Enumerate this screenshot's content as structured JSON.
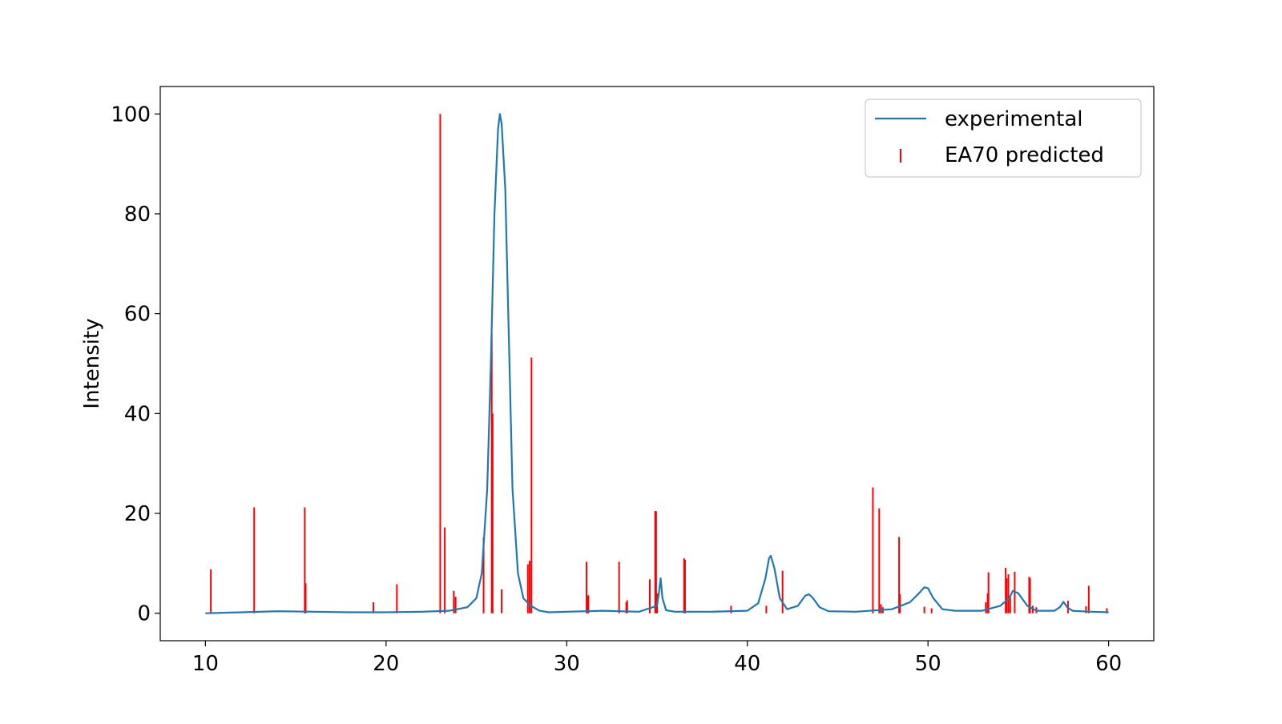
{
  "chart_data": {
    "type": "line",
    "title": "",
    "xlabel": "",
    "ylabel": "Intensity",
    "xlim": [
      7.5,
      62.5
    ],
    "ylim": [
      -5.5,
      105.5
    ],
    "xticks": [
      "10",
      "20",
      "30",
      "40",
      "50",
      "60"
    ],
    "yticks": [
      "0",
      "20",
      "40",
      "60",
      "80",
      "100"
    ],
    "grid": false,
    "legend_position": "top-right",
    "legend": [
      {
        "name": "experimental",
        "kind": "line",
        "color": "#1f77b4"
      },
      {
        "name": "EA70 predicted",
        "kind": "stick",
        "color": "#ff0000"
      }
    ],
    "series": [
      {
        "name": "experimental",
        "type": "line",
        "color": "#1f77b4",
        "x": [
          10.0,
          12.0,
          14.0,
          16.0,
          18.0,
          20.0,
          22.0,
          23.5,
          24.5,
          25.0,
          25.3,
          25.6,
          25.8,
          26.0,
          26.2,
          26.3,
          26.4,
          26.6,
          26.8,
          27.0,
          27.3,
          27.6,
          28.0,
          28.5,
          29.0,
          30.0,
          32.0,
          34.0,
          35.0,
          35.1,
          35.2,
          35.3,
          35.5,
          36.0,
          38.0,
          40.0,
          40.6,
          41.0,
          41.2,
          41.3,
          41.5,
          41.8,
          42.2,
          42.8,
          43.2,
          43.4,
          43.6,
          44.0,
          44.5,
          46.0,
          48.0,
          49.0,
          49.5,
          49.8,
          50.0,
          50.3,
          50.8,
          51.5,
          53.0,
          54.0,
          54.5,
          54.7,
          55.0,
          55.5,
          56.0,
          57.0,
          57.3,
          57.5,
          57.7,
          58.0,
          59.0,
          60.0
        ],
        "y": [
          0.0,
          0.2,
          0.4,
          0.3,
          0.2,
          0.2,
          0.3,
          0.5,
          1.2,
          3.0,
          8.0,
          25.0,
          50.0,
          80.0,
          97.0,
          100.0,
          98.0,
          85.0,
          55.0,
          25.0,
          8.0,
          3.0,
          1.5,
          0.5,
          0.2,
          0.3,
          0.5,
          0.3,
          1.5,
          4.0,
          7.0,
          3.0,
          0.6,
          0.3,
          0.3,
          0.5,
          2.0,
          7.0,
          11.0,
          11.5,
          9.0,
          3.0,
          0.8,
          1.5,
          3.5,
          3.8,
          3.2,
          1.2,
          0.4,
          0.3,
          0.8,
          2.2,
          4.0,
          5.2,
          5.0,
          3.0,
          0.8,
          0.5,
          0.5,
          1.5,
          3.0,
          4.5,
          4.0,
          1.5,
          0.5,
          0.5,
          1.2,
          2.3,
          1.2,
          0.5,
          0.3,
          0.2
        ]
      },
      {
        "name": "EA70 predicted",
        "type": "stick",
        "color": "#ff0000",
        "x": [
          10.3,
          12.7,
          15.5,
          15.55,
          19.3,
          20.6,
          23.0,
          23.25,
          23.75,
          23.85,
          25.4,
          25.85,
          25.9,
          26.4,
          27.85,
          27.95,
          28.05,
          31.1,
          31.15,
          31.2,
          32.9,
          33.3,
          33.35,
          34.6,
          34.9,
          34.95,
          35.0,
          36.5,
          36.55,
          39.1,
          41.05,
          41.95,
          46.95,
          47.3,
          47.4,
          47.5,
          48.4,
          48.45,
          49.8,
          50.2,
          53.2,
          53.3,
          53.35,
          54.3,
          54.35,
          54.45,
          54.55,
          54.8,
          55.6,
          55.65,
          55.8,
          56.0,
          57.75,
          58.75,
          58.9,
          59.9
        ],
        "y": [
          8.8,
          21.2,
          21.2,
          6.0,
          2.2,
          5.8,
          100.0,
          17.2,
          4.5,
          3.3,
          15.2,
          56.0,
          40.0,
          4.8,
          9.8,
          10.5,
          51.2,
          10.3,
          3.5,
          3.6,
          10.3,
          2.2,
          2.6,
          6.8,
          20.5,
          20.4,
          4.0,
          11.0,
          10.7,
          1.5,
          1.5,
          8.5,
          25.2,
          21.0,
          1.8,
          1.2,
          15.3,
          3.8,
          1.3,
          1.0,
          2.2,
          4.0,
          8.2,
          9.1,
          7.0,
          7.8,
          3.2,
          8.3,
          7.3,
          7.0,
          1.5,
          1.2,
          2.5,
          1.4,
          5.5,
          1.0
        ]
      }
    ]
  }
}
